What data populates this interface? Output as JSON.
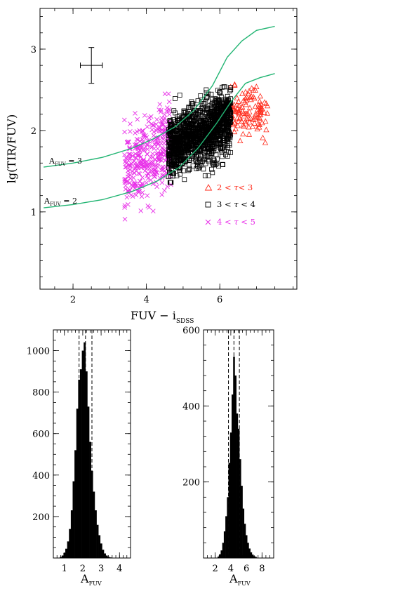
{
  "chart_data": [
    {
      "type": "scatter",
      "title": "",
      "xlabel": "FUV − i",
      "xlabel_sub": "SDSS",
      "ylabel": "lg(TIR/FUV)",
      "xlim": [
        1.1,
        8.1
      ],
      "ylim": [
        0.05,
        3.5
      ],
      "x_ticks": [
        2,
        4,
        6
      ],
      "y_ticks": [
        1,
        2,
        3
      ],
      "x_ticks_labels": [
        "2",
        "4",
        "6"
      ],
      "y_ticks_labels": [
        "1",
        "2",
        "3"
      ],
      "grid": false,
      "legend_position": "right-middle",
      "curves": [
        {
          "label_main": "A",
          "label_sub": "FUV",
          "label_value": " = 3",
          "color": "#22b573",
          "x": [
            1.2,
            2.0,
            2.8,
            3.6,
            4.2,
            4.8,
            5.3,
            5.8,
            6.2,
            6.6,
            7.0,
            7.5
          ],
          "y": [
            1.55,
            1.6,
            1.67,
            1.78,
            1.9,
            2.05,
            2.25,
            2.55,
            2.9,
            3.1,
            3.23,
            3.28
          ]
        },
        {
          "label_main": "A",
          "label_sub": "FUV",
          "label_value": " = 2",
          "color": "#22b573",
          "x": [
            1.2,
            2.0,
            2.8,
            3.6,
            4.3,
            4.9,
            5.4,
            5.9,
            6.3,
            6.7,
            7.1,
            7.5
          ],
          "y": [
            1.05,
            1.09,
            1.15,
            1.25,
            1.38,
            1.55,
            1.78,
            2.08,
            2.35,
            2.58,
            2.65,
            2.7
          ]
        }
      ],
      "error_bar": {
        "x": 2.5,
        "y": 2.8,
        "xerr": 0.3,
        "yerr": 0.22
      },
      "series": [
        {
          "name": "2 < τ < 3",
          "label_parts": [
            "2 < ",
            "τ",
            "< 3"
          ],
          "marker": "triangle",
          "color": "#ff2a1a",
          "n": 130,
          "x_range": [
            6.2,
            7.3
          ],
          "y_center": 2.22,
          "y_spread": 0.32
        },
        {
          "name": "3 < τ < 4",
          "label_parts": [
            "3 < ",
            "τ",
            " < 4"
          ],
          "marker": "square",
          "color": "#000000",
          "n": 1300,
          "x_range": [
            4.6,
            6.3
          ],
          "y_center": 1.95,
          "y_spread": 0.42
        },
        {
          "name": "4 < τ < 5",
          "label_parts": [
            "4 < ",
            "τ",
            " < 5"
          ],
          "marker": "cross",
          "color": "#e830e8",
          "n": 360,
          "x_range": [
            3.4,
            4.7
          ],
          "y_center": 1.68,
          "y_spread": 0.55
        }
      ]
    },
    {
      "type": "bar",
      "xlabel": "A",
      "xlabel_sub": "FUV",
      "ylabel": "",
      "xlim": [
        0.4,
        4.6
      ],
      "ylim": [
        0,
        1100
      ],
      "x_ticks": [
        1,
        2,
        3,
        4
      ],
      "y_ticks": [
        200,
        400,
        600,
        800,
        1000
      ],
      "x_ticks_labels": [
        "1",
        "2",
        "3",
        "4"
      ],
      "y_ticks_labels": [
        "200",
        "400",
        "600",
        "800",
        "1000"
      ],
      "bin_width": 0.1,
      "bins_x": [
        0.8,
        0.9,
        1.0,
        1.1,
        1.2,
        1.3,
        1.4,
        1.5,
        1.6,
        1.7,
        1.8,
        1.9,
        2.0,
        2.1,
        2.2,
        2.3,
        2.4,
        2.5,
        2.6,
        2.7,
        2.8,
        2.9,
        3.0,
        3.1,
        3.2,
        3.3,
        3.4,
        3.5,
        3.6
      ],
      "values": [
        5,
        12,
        25,
        45,
        80,
        140,
        230,
        370,
        520,
        720,
        860,
        910,
        1000,
        1040,
        900,
        730,
        560,
        420,
        320,
        230,
        160,
        110,
        70,
        40,
        22,
        12,
        6,
        3,
        1
      ],
      "dashed_lines": [
        1.8,
        2.15,
        2.5
      ]
    },
    {
      "type": "bar",
      "xlabel": "A",
      "xlabel_sub": "FUV",
      "ylabel": "",
      "xlim": [
        0.5,
        9.5
      ],
      "ylim": [
        0,
        600
      ],
      "x_ticks": [
        2,
        4,
        6,
        8
      ],
      "y_ticks": [
        200,
        400,
        600
      ],
      "x_ticks_labels": [
        "2",
        "4",
        "6",
        "8"
      ],
      "y_ticks_labels": [
        "200",
        "400",
        "600"
      ],
      "bin_width": 0.2,
      "bins_x": [
        2.4,
        2.6,
        2.8,
        3.0,
        3.2,
        3.4,
        3.6,
        3.8,
        4.0,
        4.2,
        4.4,
        4.6,
        4.8,
        5.0,
        5.2,
        5.4,
        5.6,
        5.8,
        6.0,
        6.2,
        6.4,
        6.6,
        6.8,
        7.0,
        7.2,
        7.4
      ],
      "values": [
        4,
        10,
        20,
        40,
        70,
        110,
        160,
        250,
        330,
        430,
        530,
        480,
        380,
        340,
        260,
        190,
        130,
        90,
        60,
        40,
        25,
        15,
        9,
        5,
        3,
        1
      ],
      "dashed_lines": [
        3.7,
        4.4,
        5.1
      ]
    }
  ]
}
